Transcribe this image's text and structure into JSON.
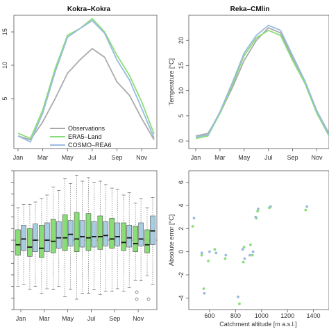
{
  "chart_data": [
    {
      "type": "line",
      "title": "Kokra–Kokra",
      "x_ticks": [
        "Jan",
        "Mar",
        "May",
        "Jul",
        "Sep",
        "Nov"
      ],
      "y_ticks": [
        "5",
        "10",
        "15"
      ],
      "y_ticks_partial": [
        "5",
        "0",
        "5"
      ],
      "x": [
        1,
        2,
        3,
        4,
        5,
        6,
        7,
        8,
        9,
        10,
        11,
        12
      ],
      "ylim": [
        -2.5,
        17.5
      ],
      "series": [
        {
          "name": "Observations",
          "color": "#aaaaaa",
          "values": [
            -0.6,
            -1.2,
            1.5,
            5.0,
            8.8,
            10.8,
            12.5,
            11.2,
            7.5,
            5.5,
            2.0,
            -1.2
          ]
        },
        {
          "name": "ERA5–Land",
          "color": "#88dd77",
          "values": [
            -0.2,
            -1.0,
            3.3,
            9.5,
            14.5,
            15.5,
            17.0,
            15.0,
            11.5,
            8.5,
            4.5,
            -0.3
          ]
        },
        {
          "name": "COSMO–REA6",
          "color": "#99bbdd",
          "values": [
            -0.6,
            -1.5,
            2.8,
            9.0,
            14.2,
            15.5,
            16.7,
            14.8,
            10.8,
            7.8,
            3.5,
            -0.9
          ]
        }
      ]
    },
    {
      "type": "line",
      "title": "Reka–CMlin",
      "ylabel": "Temperature [°C]",
      "x_ticks": [
        "Jan",
        "Mar",
        "May",
        "Jul",
        "Sep",
        "Nov"
      ],
      "y_ticks": [
        "0",
        "5",
        "10",
        "15",
        "20"
      ],
      "x": [
        1,
        2,
        3,
        4,
        5,
        6,
        7,
        8,
        9,
        10,
        11,
        12
      ],
      "ylim": [
        -1.5,
        25
      ],
      "series": [
        {
          "name": "Observations",
          "color": "#aaaaaa",
          "values": [
            1.0,
            1.5,
            5.5,
            10.5,
            16.0,
            20.0,
            22.5,
            21.5,
            16.5,
            12.0,
            6.0,
            1.5
          ]
        },
        {
          "name": "ERA5–Land",
          "color": "#88dd77",
          "values": [
            0.5,
            1.0,
            5.5,
            11.0,
            17.0,
            20.5,
            22.0,
            21.0,
            16.0,
            11.5,
            5.5,
            1.0
          ]
        },
        {
          "name": "COSMO–REA6",
          "color": "#99bbdd",
          "values": [
            0.8,
            1.2,
            5.8,
            11.5,
            17.5,
            21.0,
            23.0,
            22.0,
            17.0,
            12.0,
            6.0,
            1.2
          ]
        }
      ]
    },
    {
      "type": "box",
      "x_ticks": [
        "Jan",
        "Mar",
        "May",
        "Jul",
        "Sep",
        "Nov"
      ],
      "ylim": [
        -6,
        6
      ],
      "reference_line": 0,
      "series": [
        {
          "name": "ERA5–Land",
          "color": "#88dd77",
          "boxes": [
            {
              "month": "Jan",
              "q1": -1.3,
              "median": -0.4,
              "q3": 0.9,
              "lo": -4.0,
              "hi": 2.8
            },
            {
              "month": "Feb",
              "q1": -1.4,
              "median": -0.6,
              "q3": 1.0,
              "lo": -4.3,
              "hi": 3.1
            },
            {
              "month": "Mar",
              "q1": -1.5,
              "median": -0.7,
              "q3": 1.3,
              "lo": -4.6,
              "hi": 3.6
            },
            {
              "month": "Apr",
              "q1": -1.1,
              "median": -0.1,
              "q3": 1.8,
              "lo": -4.3,
              "hi": 4.6
            },
            {
              "month": "May",
              "q1": -0.9,
              "median": 0.2,
              "q3": 2.2,
              "lo": -4.9,
              "hi": 5.3
            },
            {
              "month": "Jun",
              "q1": -1.0,
              "median": 0.1,
              "q3": 2.4,
              "lo": -5.1,
              "hi": 5.6
            },
            {
              "month": "Jul",
              "q1": -0.9,
              "median": 0.2,
              "q3": 2.3,
              "lo": -4.6,
              "hi": 5.4
            },
            {
              "month": "Aug",
              "q1": -0.8,
              "median": 0.3,
              "q3": 2.1,
              "lo": -4.7,
              "hi": 5.1
            },
            {
              "month": "Sep",
              "q1": -0.7,
              "median": 0.1,
              "q3": 1.9,
              "lo": -4.4,
              "hi": 4.5
            },
            {
              "month": "Oct",
              "q1": -0.9,
              "median": -0.2,
              "q3": 1.5,
              "lo": -4.4,
              "hi": 3.9
            },
            {
              "month": "Nov",
              "q1": -1.0,
              "median": -0.3,
              "q3": 1.2,
              "lo": -3.5,
              "hi": 3.2
            },
            {
              "month": "Dec",
              "q1": -1.1,
              "median": -0.4,
              "q3": 0.9,
              "lo": -3.1,
              "hi": 2.8
            }
          ]
        },
        {
          "name": "COSMO–REA6",
          "color": "#a8cce0",
          "boxes": [
            {
              "month": "Jan",
              "q1": -0.9,
              "median": 0.1,
              "q3": 1.3,
              "lo": -3.8,
              "hi": 3.1
            },
            {
              "month": "Feb",
              "q1": -1.0,
              "median": 0.0,
              "q3": 1.4,
              "lo": -4.0,
              "hi": 3.3
            },
            {
              "month": "Mar",
              "q1": -1.0,
              "median": 0.0,
              "q3": 1.5,
              "lo": -4.2,
              "hi": 3.9
            },
            {
              "month": "Apr",
              "q1": -0.7,
              "median": 0.2,
              "q3": 1.6,
              "lo": -4.0,
              "hi": 4.3
            },
            {
              "month": "May",
              "q1": -0.5,
              "median": 0.5,
              "q3": 1.7,
              "lo": -4.3,
              "hi": 4.9
            },
            {
              "month": "Jun",
              "q1": -0.6,
              "median": 0.3,
              "q3": 1.7,
              "lo": -4.6,
              "hi": 5.1
            },
            {
              "month": "Jul",
              "q1": -0.6,
              "median": 0.3,
              "q3": 1.6,
              "lo": -4.3,
              "hi": 5.0
            },
            {
              "month": "Aug",
              "q1": -0.5,
              "median": 0.4,
              "q3": 1.6,
              "lo": -4.4,
              "hi": 4.8
            },
            {
              "month": "Sep",
              "q1": -0.5,
              "median": 0.3,
              "q3": 1.5,
              "lo": -4.2,
              "hi": 4.4
            },
            {
              "month": "Oct",
              "q1": -0.6,
              "median": 0.2,
              "q3": 1.3,
              "lo": -4.1,
              "hi": 4.1
            },
            {
              "month": "Nov",
              "q1": -0.5,
              "median": 0.1,
              "q3": 1.5,
              "lo": -3.5,
              "hi": 3.6
            },
            {
              "month": "Dec",
              "q1": -0.4,
              "median": 0.8,
              "q3": 2.1,
              "lo": -3.8,
              "hi": 3.7
            }
          ]
        }
      ],
      "outliers": [
        {
          "month": "Nov",
          "values": [
            -4.5,
            -5.1
          ]
        },
        {
          "month": "Dec",
          "values": [
            -5.1
          ]
        }
      ]
    },
    {
      "type": "scatter",
      "xlabel": "Catchment altitude [m a.s.l.]",
      "ylabel": "Absolute error [°C]",
      "x_ticks": [
        "600",
        "800",
        "1000",
        "1200",
        "1400"
      ],
      "y_ticks": [
        "-4",
        "-2",
        "0",
        "2",
        "4",
        "6"
      ],
      "xlim": [
        440,
        1520
      ],
      "ylim": [
        -5,
        7
      ],
      "series": [
        {
          "name": "ERA5–Land",
          "color": "#88dd77",
          "points": [
            [
              470,
              2.2
            ],
            [
              540,
              -0.3
            ],
            [
              555,
              -3.2
            ],
            [
              590,
              -0.8
            ],
            [
              640,
              0.2
            ],
            [
              720,
              -0.6
            ],
            [
              830,
              -4.5
            ],
            [
              860,
              -0.9
            ],
            [
              865,
              0.4
            ],
            [
              915,
              0.6
            ],
            [
              930,
              -0.3
            ],
            [
              960,
              2.9
            ],
            [
              970,
              3.5
            ],
            [
              1060,
              3.8
            ],
            [
              1340,
              3.6
            ]
          ]
        },
        {
          "name": "COSMO–REA6",
          "color": "#99bbdd",
          "points": [
            [
              480,
              2.9
            ],
            [
              540,
              -0.1
            ],
            [
              560,
              -3.6
            ],
            [
              600,
              0.0
            ],
            [
              650,
              -0.1
            ],
            [
              725,
              -0.3
            ],
            [
              820,
              -3.9
            ],
            [
              855,
              0.2
            ],
            [
              870,
              -0.6
            ],
            [
              910,
              -0.3
            ],
            [
              935,
              0.0
            ],
            [
              955,
              3.0
            ],
            [
              975,
              3.7
            ],
            [
              1070,
              3.9
            ],
            [
              1350,
              3.9
            ]
          ]
        }
      ]
    }
  ]
}
